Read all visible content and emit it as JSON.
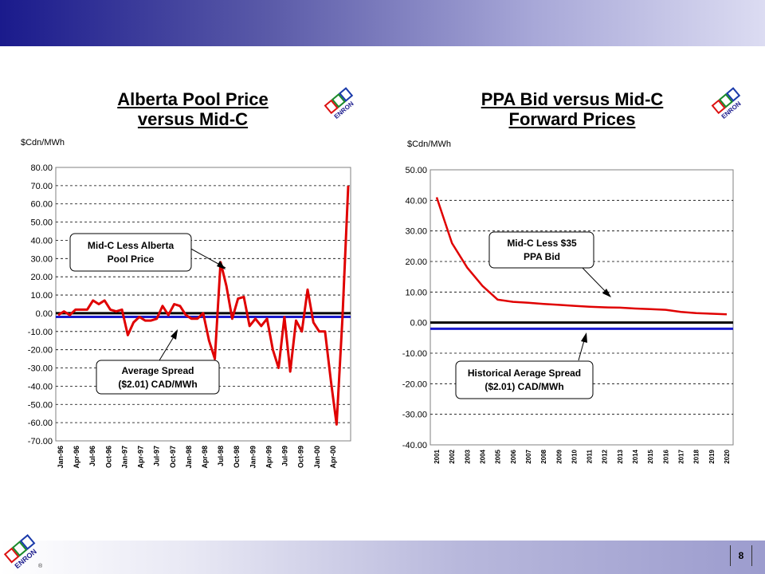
{
  "slide": {
    "page_number": "8"
  },
  "brand": {
    "logo_text": "ENRON",
    "registered": "®"
  },
  "colors": {
    "series": "#e00000",
    "zero_line": "#000000",
    "average_line": "#1a1acc",
    "header_start": "#1a1a8c",
    "header_end": "#dcdcf2"
  },
  "charts": {
    "left": {
      "title_line1": "Alberta Pool Price",
      "title_line2": "versus Mid-C",
      "unit": "$Cdn/MWh",
      "callout_upper_line1": "Mid-C Less Alberta",
      "callout_upper_line2": "Pool Price",
      "callout_lower_line1": "Average Spread",
      "callout_lower_line2": "($2.01) CAD/MWh"
    },
    "right": {
      "title_line1": "PPA Bid versus Mid-C",
      "title_line2": "Forward Prices",
      "unit": "$Cdn/MWh",
      "callout_upper_line1": "Mid-C Less $35",
      "callout_upper_line2": "PPA Bid",
      "callout_lower_line1": "Historical Aerage Spread",
      "callout_lower_line2": "($2.01) CAD/MWh"
    }
  },
  "chart_data": [
    {
      "type": "line",
      "title": "Alberta Pool Price versus Mid-C",
      "ylabel": "$Cdn/MWh",
      "ylim": [
        -70,
        80
      ],
      "yticks": [
        "80.00",
        "70.00",
        "60.00",
        "50.00",
        "40.00",
        "30.00",
        "20.00",
        "10.00",
        "0.00",
        "-10.00",
        "-20.00",
        "-30.00",
        "-40.00",
        "-50.00",
        "-60.00",
        "-70.00"
      ],
      "x_tick_labels": [
        "Jan-96",
        "Apr-96",
        "Jul-96",
        "Oct-96",
        "Jan-97",
        "Apr-97",
        "Jul-97",
        "Oct-97",
        "Jan-98",
        "Apr-98",
        "Jul-98",
        "Oct-98",
        "Jan-99",
        "Apr-99",
        "Jul-99",
        "Oct-99",
        "Jan-00",
        "Apr-00"
      ],
      "grid": true,
      "reference_lines": [
        {
          "y": 0,
          "color": "#000000"
        },
        {
          "y": -2.01,
          "color": "#1a1acc"
        }
      ],
      "series": [
        {
          "values": [
            -1,
            1,
            -1,
            2,
            2,
            2,
            7,
            5,
            7,
            2,
            1,
            2,
            -12,
            -5,
            -2,
            -4,
            -4,
            -3,
            4,
            -1,
            5,
            4,
            -1,
            -3,
            -3,
            0,
            -15,
            -25,
            28,
            15,
            -3,
            8,
            9,
            -7,
            -3,
            -7,
            -3,
            -20,
            -30,
            -2,
            -32,
            -4,
            -10,
            13,
            -5,
            -10,
            -10,
            -37,
            -61,
            -3,
            70
          ]
        }
      ]
    },
    {
      "type": "line",
      "title": "PPA Bid versus Mid-C Forward Prices",
      "ylabel": "$Cdn/MWh",
      "ylim": [
        -40,
        50
      ],
      "yticks": [
        "50.00",
        "40.00",
        "30.00",
        "20.00",
        "10.00",
        "0.00",
        "-10.00",
        "-20.00",
        "-30.00",
        "-40.00"
      ],
      "categories": [
        "2001",
        "2002",
        "2003",
        "2004",
        "2005",
        "2006",
        "2007",
        "2008",
        "2009",
        "2010",
        "2011",
        "2012",
        "2013",
        "2014",
        "2015",
        "2016",
        "2017",
        "2018",
        "2019",
        "2020"
      ],
      "grid": true,
      "reference_lines": [
        {
          "y": 0,
          "color": "#000000"
        },
        {
          "y": -2.01,
          "color": "#1a1acc"
        }
      ],
      "series": [
        {
          "values": [
            41,
            26,
            18,
            12,
            7.5,
            6.8,
            6.5,
            6.1,
            5.8,
            5.5,
            5.2,
            5,
            4.9,
            4.6,
            4.4,
            4.2,
            3.5,
            3.1,
            2.9,
            2.7
          ]
        }
      ]
    }
  ]
}
